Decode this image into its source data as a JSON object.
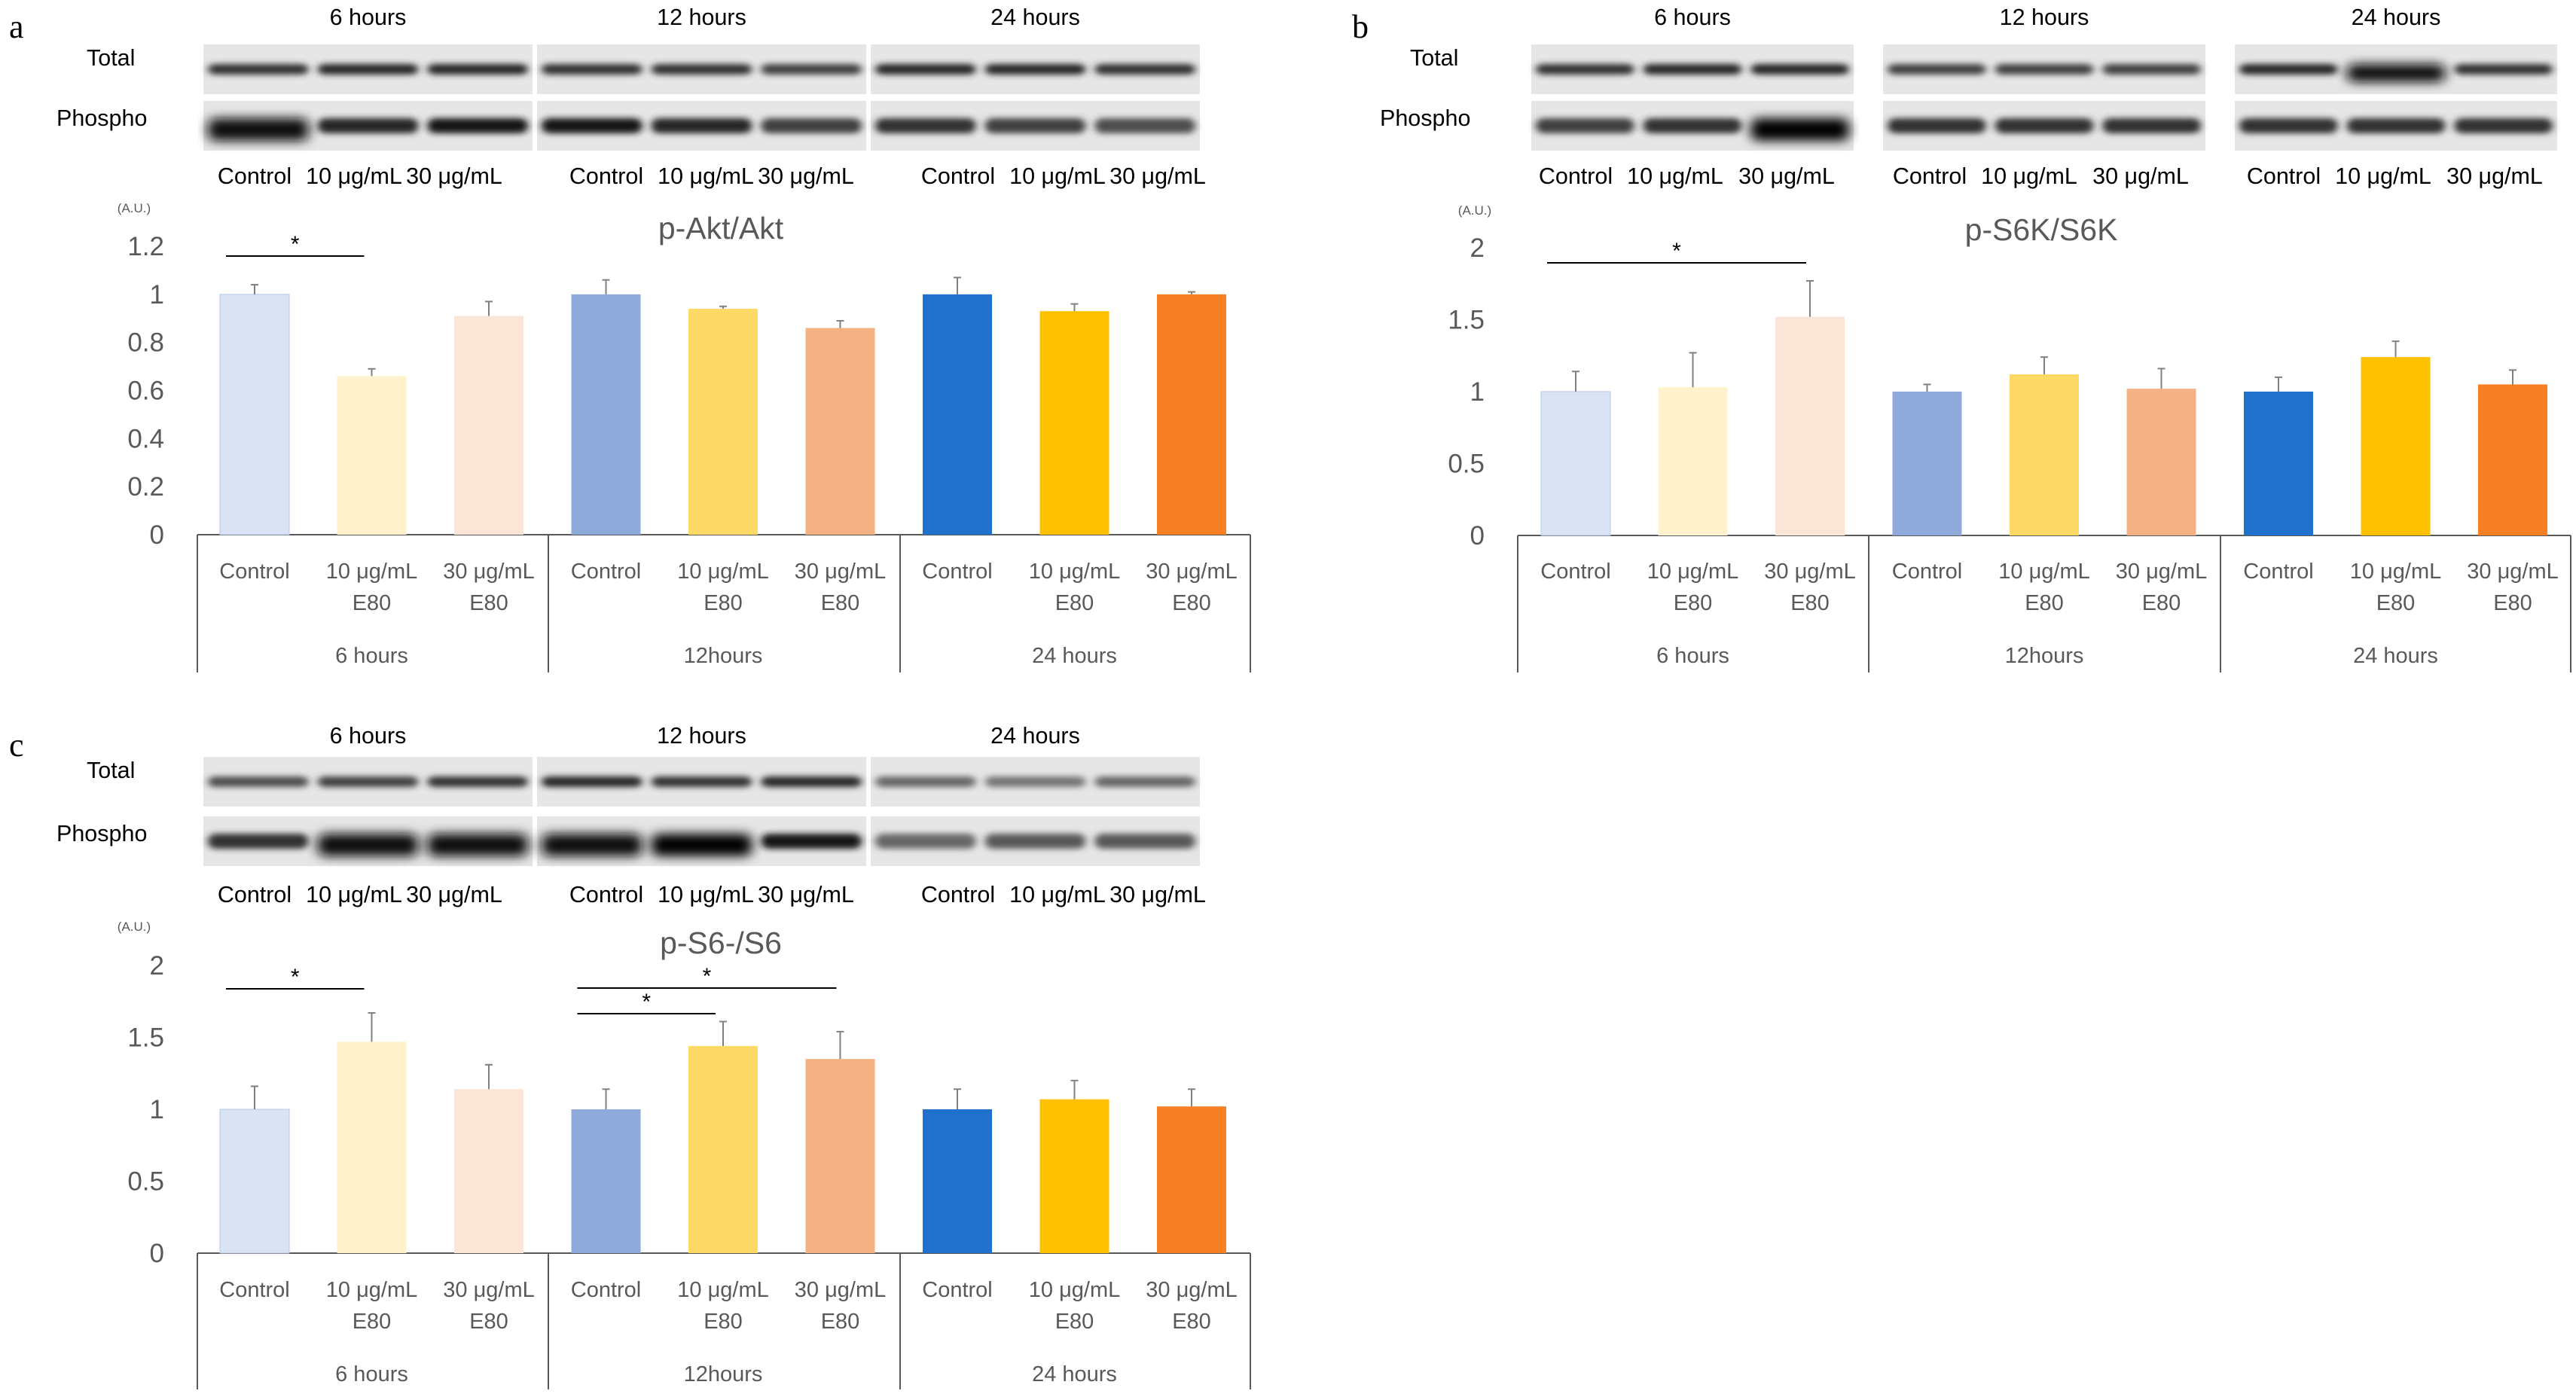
{
  "colors": {
    "ctrl_6h": "#DAE3F3",
    "low_6h": "#FFF2CC",
    "high_6h": "#FBE5D6",
    "ctrl_12h": "#8EAADB",
    "low_12h": "#FFD966",
    "high_12h": "#F4B183",
    "ctrl_24h": "#1F71CC",
    "low_24h": "#FFC000",
    "high_24h": "#F78024",
    "axis": "#595959",
    "error": "#808080"
  },
  "chart_data": [
    {
      "panel": "a",
      "type": "bar",
      "title": "p-Akt/Akt",
      "ylabel": "(A.U.)",
      "ylim": [
        0,
        1.2
      ],
      "yticks": [
        "0",
        "0.2",
        "0.4",
        "0.6",
        "0.8",
        "1",
        "1.2"
      ],
      "categories": [
        "Control",
        "10 μg/mL E80",
        "30 μg/mL E80",
        "Control",
        "10 μg/mL E80",
        "30 μg/mL E80",
        "Control",
        "10 μg/mL E80",
        "30 μg/mL E80"
      ],
      "groups": [
        "6 hours",
        "12hours",
        "24 hours"
      ],
      "values": [
        1.0,
        0.66,
        0.91,
        1.0,
        0.94,
        0.86,
        1.0,
        0.93,
        1.0
      ],
      "errors": [
        0.04,
        0.03,
        0.06,
        0.06,
        0.01,
        0.03,
        0.07,
        0.03,
        0.01
      ],
      "significance": [
        {
          "from": 0,
          "to": 1,
          "label": "*"
        }
      ],
      "blot": {
        "time_labels": [
          "6 hours",
          "12 hours",
          "24 hours"
        ],
        "rows": [
          "Total",
          "Phospho"
        ],
        "lanes": [
          "Control",
          "10 μg/mL",
          "30 μg/mL"
        ]
      }
    },
    {
      "panel": "b",
      "type": "bar",
      "title": "p-S6K/S6K",
      "ylabel": "(A.U.)",
      "ylim": [
        0,
        2
      ],
      "yticks": [
        "0",
        "0.5",
        "1",
        "1.5",
        "2"
      ],
      "categories": [
        "Control",
        "10 μg/mL E80",
        "30 μg/mL E80",
        "Control",
        "10 μg/mL E80",
        "30 μg/mL E80",
        "Control",
        "10 μg/mL E80",
        "30 μg/mL E80"
      ],
      "groups": [
        "6 hours",
        "12hours",
        "24 hours"
      ],
      "values": [
        1.0,
        1.03,
        1.52,
        1.0,
        1.12,
        1.02,
        1.0,
        1.24,
        1.05
      ],
      "errors": [
        0.14,
        0.24,
        0.25,
        0.05,
        0.12,
        0.14,
        0.1,
        0.11,
        0.1
      ],
      "significance": [
        {
          "from": 0,
          "to": 2,
          "label": "*"
        }
      ],
      "blot": {
        "time_labels": [
          "6 hours",
          "12 hours",
          "24 hours"
        ],
        "rows": [
          "Total",
          "Phospho"
        ],
        "lanes": [
          "Control",
          "10 μg/mL",
          "30 μg/mL"
        ]
      }
    },
    {
      "panel": "c",
      "type": "bar",
      "title": "p-S6-/S6",
      "ylabel": "(A.U.)",
      "ylim": [
        0,
        2
      ],
      "yticks": [
        "0",
        "0.5",
        "1",
        "1.5",
        "2"
      ],
      "categories": [
        "Control",
        "10 μg/mL E80",
        "30 μg/mL E80",
        "Control",
        "10 μg/mL E80",
        "30 μg/mL E80",
        "Control",
        "10 μg/mL E80",
        "30 μg/mL E80"
      ],
      "groups": [
        "6 hours",
        "12hours",
        "24 hours"
      ],
      "values": [
        1.0,
        1.47,
        1.14,
        1.0,
        1.44,
        1.35,
        1.0,
        1.07,
        1.02
      ],
      "errors": [
        0.16,
        0.2,
        0.17,
        0.14,
        0.17,
        0.19,
        0.14,
        0.13,
        0.12
      ],
      "significance": [
        {
          "from": 0,
          "to": 1,
          "label": "*"
        },
        {
          "from": 3,
          "to": 4,
          "label": "*"
        },
        {
          "from": 3,
          "to": 5,
          "label": "*"
        }
      ],
      "blot": {
        "time_labels": [
          "6 hours",
          "12 hours",
          "24 hours"
        ],
        "rows": [
          "Total",
          "Phospho"
        ],
        "lanes": [
          "Control",
          "10 μg/mL",
          "30 μg/mL"
        ]
      }
    }
  ]
}
